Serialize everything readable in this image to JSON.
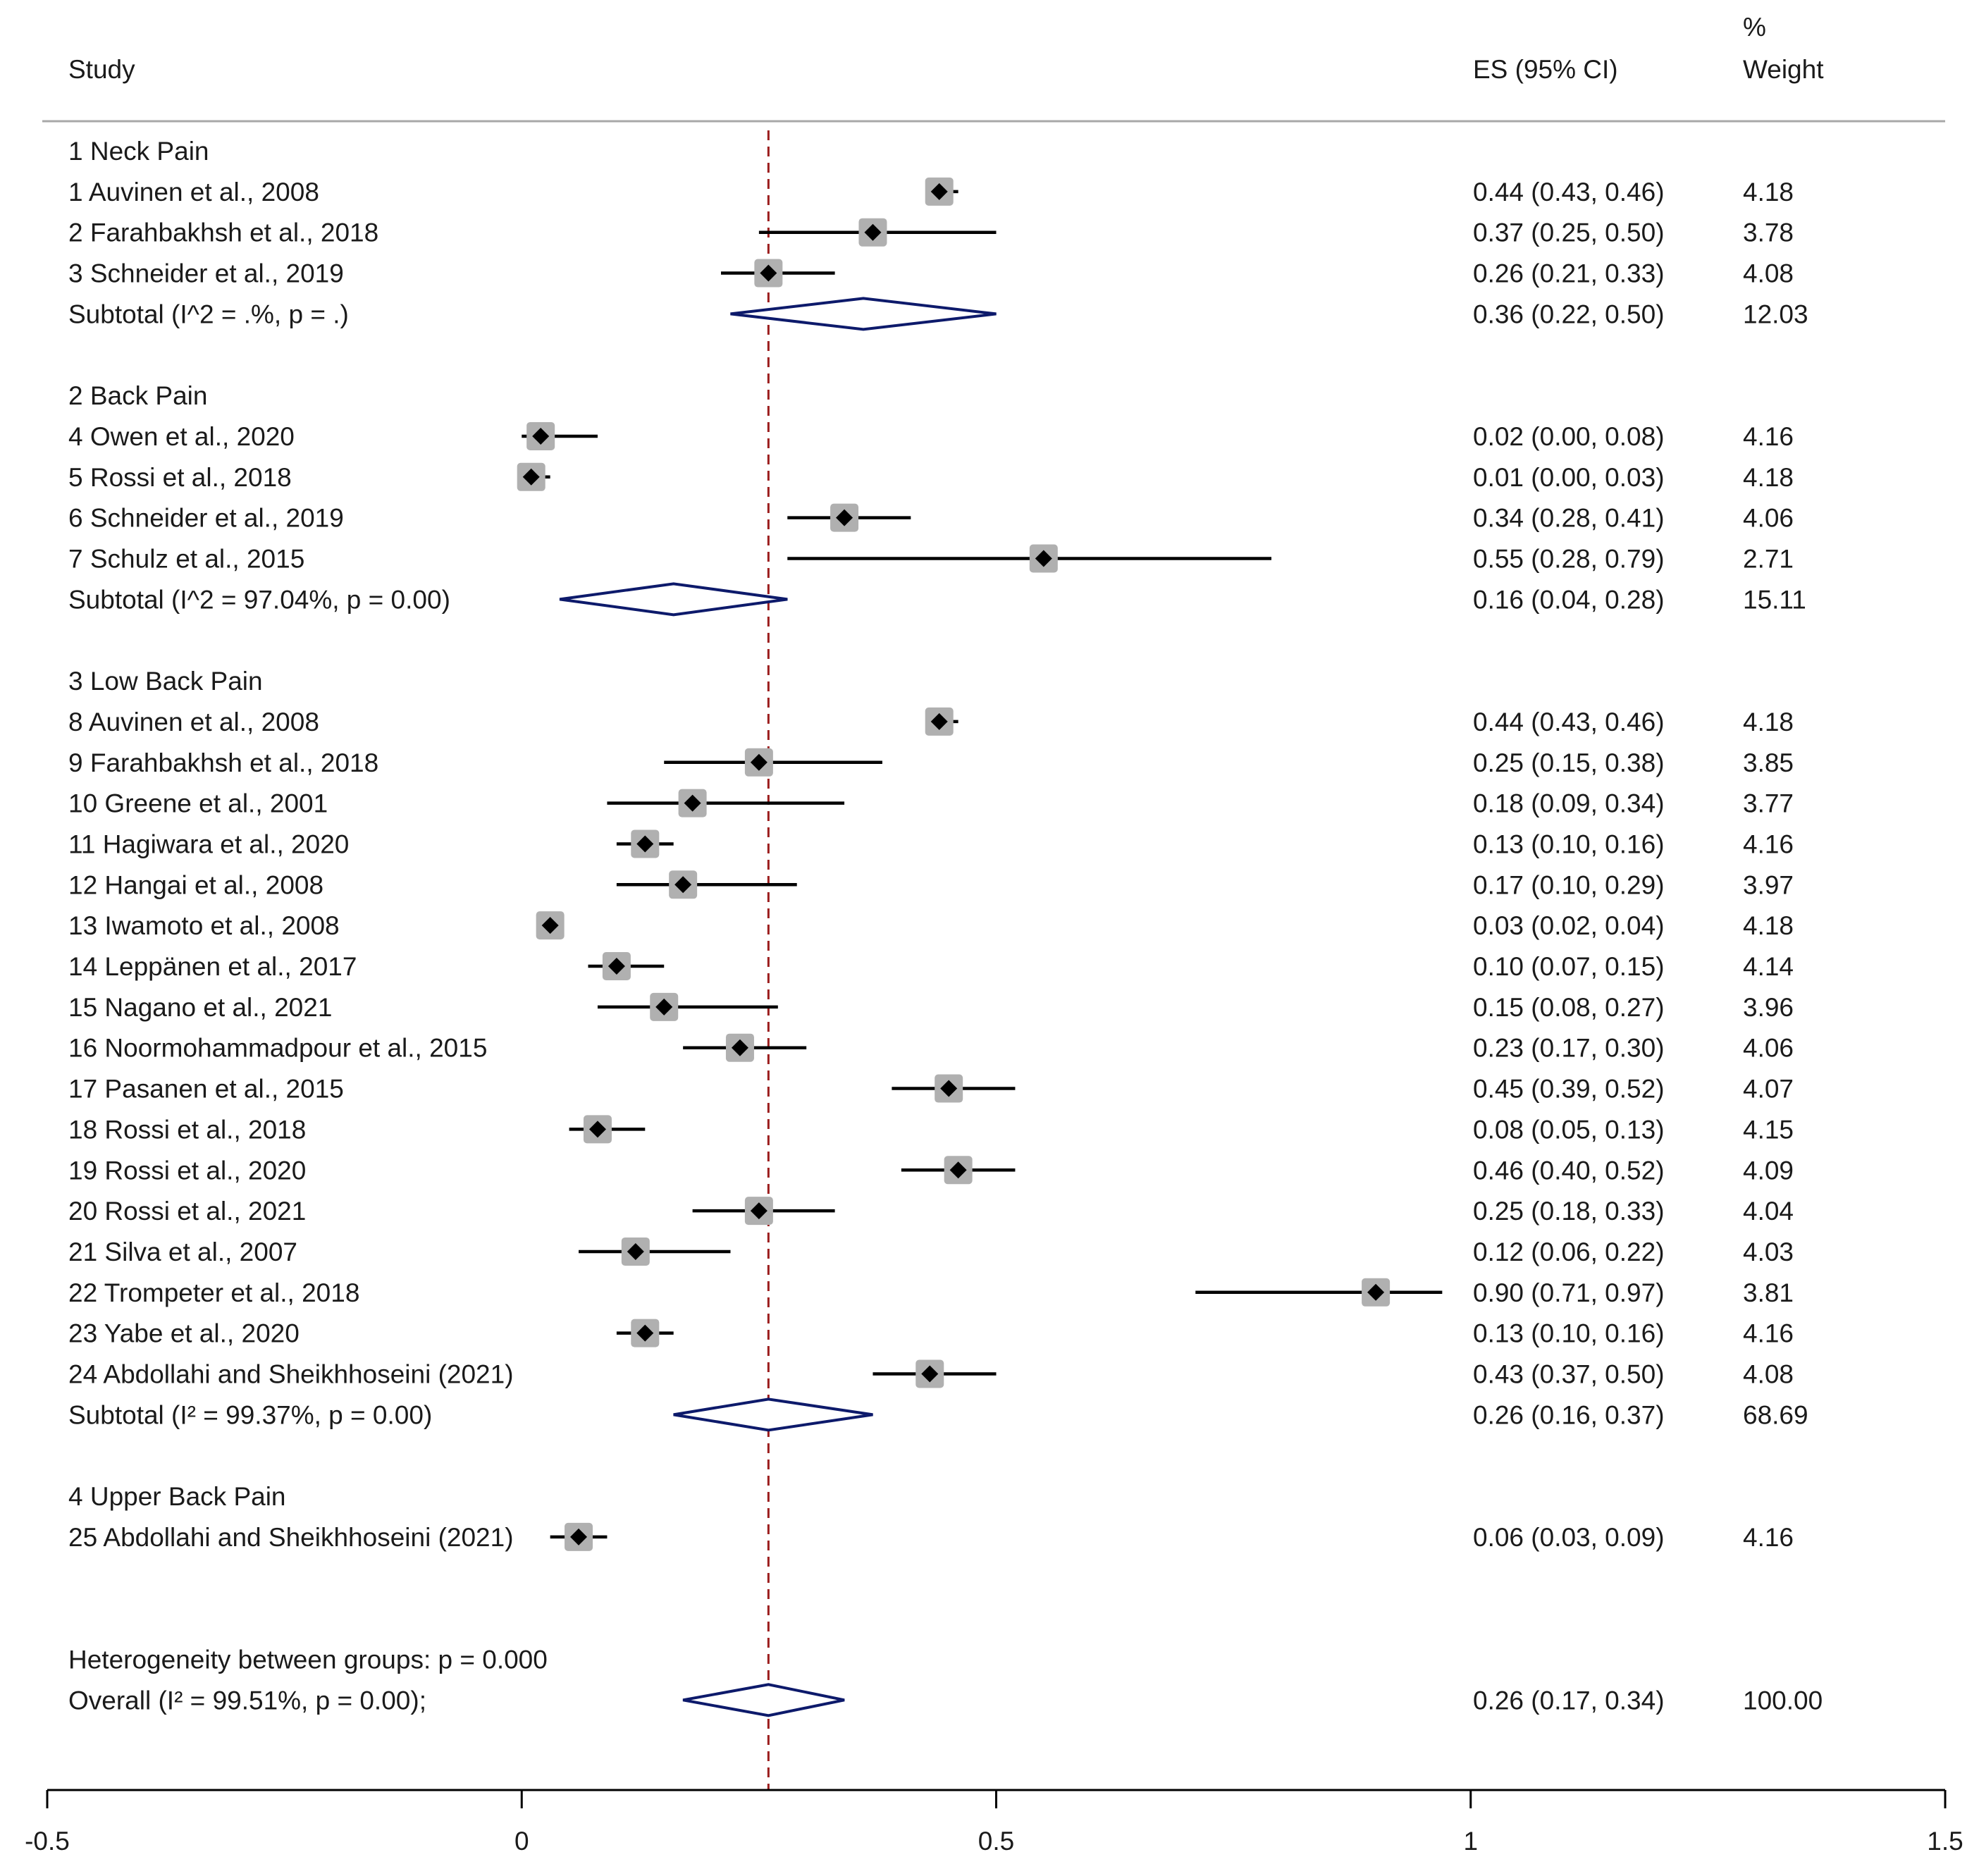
{
  "chart_data": {
    "type": "forest",
    "headers": {
      "study": "Study",
      "es": "ES (95% CI)",
      "weight_top": "%",
      "weight": "Weight"
    },
    "x_axis": {
      "min": -0.5,
      "max": 1.5,
      "ticks": [
        -0.5,
        0,
        0.5,
        1,
        1.5
      ],
      "tick_labels": [
        "-0.5",
        "0",
        "0.5",
        "1",
        "1.5"
      ]
    },
    "reference_line": 0.26,
    "colors": {
      "estimate_marker": "#000000",
      "weight_box": "#b0b0b0",
      "pooled_diamond": "#0d1a6b",
      "reference_line": "#9b1c1c",
      "divider": "#a8a8a8"
    },
    "rows": [
      {
        "kind": "group",
        "label": "1 Neck Pain"
      },
      {
        "kind": "study",
        "label": "1 Auvinen et al., 2008",
        "es": 0.44,
        "lo": 0.43,
        "hi": 0.46,
        "ci_text": "0.44 (0.43, 0.46)",
        "weight": "4.18"
      },
      {
        "kind": "study",
        "label": "2 Farahbakhsh et al., 2018",
        "es": 0.37,
        "lo": 0.25,
        "hi": 0.5,
        "ci_text": "0.37 (0.25, 0.50)",
        "weight": "3.78"
      },
      {
        "kind": "study",
        "label": "3 Schneider et al., 2019",
        "es": 0.26,
        "lo": 0.21,
        "hi": 0.33,
        "ci_text": "0.26 (0.21, 0.33)",
        "weight": "4.08"
      },
      {
        "kind": "subtotal",
        "label": "Subtotal  (I^2 = .%, p = .)",
        "es": 0.36,
        "lo": 0.22,
        "hi": 0.5,
        "ci_text": "0.36 (0.22, 0.50)",
        "weight": "12.03"
      },
      {
        "kind": "gap"
      },
      {
        "kind": "group",
        "label": "2 Back Pain"
      },
      {
        "kind": "study",
        "label": "4 Owen et al., 2020",
        "es": 0.02,
        "lo": 0.0,
        "hi": 0.08,
        "ci_text": "0.02 (0.00, 0.08)",
        "weight": "4.16"
      },
      {
        "kind": "study",
        "label": "5 Rossi et al., 2018",
        "es": 0.01,
        "lo": 0.0,
        "hi": 0.03,
        "ci_text": "0.01 (0.00, 0.03)",
        "weight": "4.18"
      },
      {
        "kind": "study",
        "label": "6 Schneider et al., 2019",
        "es": 0.34,
        "lo": 0.28,
        "hi": 0.41,
        "ci_text": "0.34 (0.28, 0.41)",
        "weight": "4.06"
      },
      {
        "kind": "study",
        "label": "7 Schulz et al., 2015",
        "es": 0.55,
        "lo": 0.28,
        "hi": 0.79,
        "ci_text": "0.55 (0.28, 0.79)",
        "weight": "2.71"
      },
      {
        "kind": "subtotal",
        "label": "Subtotal  (I^2 = 97.04%, p = 0.00)",
        "es": 0.16,
        "lo": 0.04,
        "hi": 0.28,
        "ci_text": "0.16 (0.04, 0.28)",
        "weight": "15.11"
      },
      {
        "kind": "gap"
      },
      {
        "kind": "group",
        "label": "3 Low Back Pain"
      },
      {
        "kind": "study",
        "label": "8 Auvinen et al., 2008",
        "es": 0.44,
        "lo": 0.43,
        "hi": 0.46,
        "ci_text": "0.44 (0.43, 0.46)",
        "weight": "4.18"
      },
      {
        "kind": "study",
        "label": "9 Farahbakhsh et al., 2018",
        "es": 0.25,
        "lo": 0.15,
        "hi": 0.38,
        "ci_text": "0.25 (0.15, 0.38)",
        "weight": "3.85"
      },
      {
        "kind": "study",
        "label": "10 Greene et al., 2001",
        "es": 0.18,
        "lo": 0.09,
        "hi": 0.34,
        "ci_text": "0.18 (0.09, 0.34)",
        "weight": "3.77"
      },
      {
        "kind": "study",
        "label": "11 Hagiwara et al., 2020",
        "es": 0.13,
        "lo": 0.1,
        "hi": 0.16,
        "ci_text": "0.13 (0.10, 0.16)",
        "weight": "4.16"
      },
      {
        "kind": "study",
        "label": "12 Hangai et al., 2008",
        "es": 0.17,
        "lo": 0.1,
        "hi": 0.29,
        "ci_text": "0.17 (0.10, 0.29)",
        "weight": "3.97"
      },
      {
        "kind": "study",
        "label": "13 Iwamoto et al., 2008",
        "es": 0.03,
        "lo": 0.02,
        "hi": 0.04,
        "ci_text": "0.03 (0.02, 0.04)",
        "weight": "4.18"
      },
      {
        "kind": "study",
        "label": "14 Leppänen et al., 2017",
        "es": 0.1,
        "lo": 0.07,
        "hi": 0.15,
        "ci_text": "0.10 (0.07, 0.15)",
        "weight": "4.14"
      },
      {
        "kind": "study",
        "label": "15 Nagano et al., 2021",
        "es": 0.15,
        "lo": 0.08,
        "hi": 0.27,
        "ci_text": "0.15 (0.08, 0.27)",
        "weight": "3.96"
      },
      {
        "kind": "study",
        "label": "16 Noormohammadpour et al., 2015",
        "es": 0.23,
        "lo": 0.17,
        "hi": 0.3,
        "ci_text": "0.23 (0.17, 0.30)",
        "weight": "4.06"
      },
      {
        "kind": "study",
        "label": "17 Pasanen et al., 2015",
        "es": 0.45,
        "lo": 0.39,
        "hi": 0.52,
        "ci_text": "0.45 (0.39, 0.52)",
        "weight": "4.07"
      },
      {
        "kind": "study",
        "label": "18 Rossi et al., 2018",
        "es": 0.08,
        "lo": 0.05,
        "hi": 0.13,
        "ci_text": "0.08 (0.05, 0.13)",
        "weight": "4.15"
      },
      {
        "kind": "study",
        "label": "19 Rossi et al., 2020",
        "es": 0.46,
        "lo": 0.4,
        "hi": 0.52,
        "ci_text": "0.46 (0.40, 0.52)",
        "weight": "4.09"
      },
      {
        "kind": "study",
        "label": "20 Rossi et al., 2021",
        "es": 0.25,
        "lo": 0.18,
        "hi": 0.33,
        "ci_text": "0.25 (0.18, 0.33)",
        "weight": "4.04"
      },
      {
        "kind": "study",
        "label": "21 Silva et al., 2007",
        "es": 0.12,
        "lo": 0.06,
        "hi": 0.22,
        "ci_text": "0.12 (0.06, 0.22)",
        "weight": "4.03"
      },
      {
        "kind": "study",
        "label": "22 Trompeter et al., 2018",
        "es": 0.9,
        "lo": 0.71,
        "hi": 0.97,
        "ci_text": "0.90 (0.71, 0.97)",
        "weight": "3.81"
      },
      {
        "kind": "study",
        "label": "23 Yabe et al., 2020",
        "es": 0.13,
        "lo": 0.1,
        "hi": 0.16,
        "ci_text": "0.13 (0.10, 0.16)",
        "weight": "4.16"
      },
      {
        "kind": "study",
        "label": "24 Abdollahi and Sheikhhoseini (2021)",
        "es": 0.43,
        "lo": 0.37,
        "hi": 0.5,
        "ci_text": "0.43 (0.37, 0.50)",
        "weight": "4.08"
      },
      {
        "kind": "subtotal",
        "label": "Subtotal    (I² = 99.37%, p = 0.00)",
        "es": 0.26,
        "lo": 0.16,
        "hi": 0.37,
        "ci_text": "0.26 (0.16, 0.37)",
        "weight": "68.69"
      },
      {
        "kind": "gap"
      },
      {
        "kind": "group",
        "label": "4 Upper Back Pain"
      },
      {
        "kind": "study",
        "label": "25 Abdollahi and Sheikhhoseini (2021)",
        "es": 0.06,
        "lo": 0.03,
        "hi": 0.09,
        "ci_text": "0.06 (0.03, 0.09)",
        "weight": "4.16"
      },
      {
        "kind": "gap"
      },
      {
        "kind": "gap"
      },
      {
        "kind": "note",
        "label": "Heterogeneity between groups: p = 0.000"
      },
      {
        "kind": "overall",
        "label": "Overall    (I² = 99.51%, p = 0.00);",
        "es": 0.26,
        "lo": 0.17,
        "hi": 0.34,
        "ci_text": "0.26 (0.17, 0.34)",
        "weight": "100.00"
      }
    ]
  }
}
